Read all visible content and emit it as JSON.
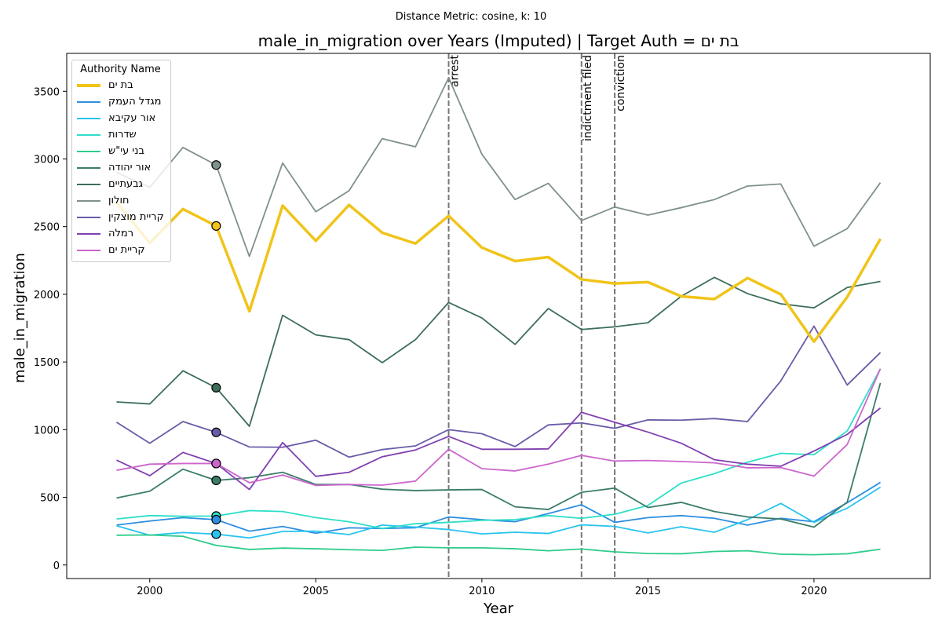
{
  "suptitle": "Distance Metric: cosine, k: 10",
  "chart_data": {
    "type": "line",
    "title": "male_in_migration over Years (Imputed) | Target Auth = בת ים",
    "xlabel": "Year",
    "ylabel": "male_in_migration",
    "xlim": [
      1997.5,
      2023.5
    ],
    "ylim": [
      -100,
      3780
    ],
    "x_ticks": [
      2000,
      2005,
      2010,
      2015,
      2020
    ],
    "y_ticks": [
      0,
      500,
      1000,
      1500,
      2000,
      2500,
      3000,
      3500
    ],
    "grid": false,
    "legend": {
      "title": "Authority Name",
      "position": "top-left"
    },
    "x": [
      1999,
      2000,
      2001,
      2002,
      2003,
      2004,
      2005,
      2006,
      2007,
      2008,
      2009,
      2010,
      2011,
      2012,
      2013,
      2014,
      2015,
      2016,
      2017,
      2018,
      2019,
      2020,
      2021,
      2022
    ],
    "series": [
      {
        "name": "בת ים",
        "color": "#f0c419",
        "width": 3.5,
        "values": [
          2680,
          2380,
          2630,
          2505,
          1875,
          2655,
          2395,
          2660,
          2455,
          2375,
          2580,
          2345,
          2245,
          2275,
          2110,
          2080,
          2090,
          1985,
          1965,
          2120,
          2000,
          1650,
          1980,
          2410
        ]
      },
      {
        "name": "מגדל העמק",
        "color": "#2e8fe0",
        "width": 1.8,
        "values": [
          295,
          325,
          350,
          335,
          250,
          285,
          235,
          275,
          270,
          275,
          355,
          335,
          320,
          380,
          445,
          315,
          350,
          365,
          345,
          295,
          345,
          320,
          460,
          610
        ]
      },
      {
        "name": "אור עקיבא",
        "color": "#29c4f0",
        "width": 1.8,
        "values": [
          290,
          220,
          240,
          228,
          200,
          248,
          250,
          225,
          295,
          280,
          262,
          230,
          242,
          233,
          297,
          285,
          237,
          283,
          242,
          335,
          455,
          315,
          420,
          575
        ]
      },
      {
        "name": "שדרות",
        "color": "#2edfc8",
        "width": 1.8,
        "values": [
          340,
          365,
          360,
          362,
          402,
          395,
          350,
          320,
          270,
          305,
          315,
          330,
          335,
          365,
          345,
          375,
          440,
          605,
          675,
          760,
          825,
          815,
          990,
          1450
        ]
      },
      {
        "name": "בני עי\"ש",
        "color": "#2ecc8a",
        "width": 1.8,
        "values": [
          220,
          222,
          212,
          145,
          115,
          125,
          120,
          113,
          108,
          132,
          127,
          127,
          120,
          105,
          118,
          97,
          85,
          83,
          100,
          105,
          80,
          76,
          83,
          117
        ]
      },
      {
        "name": "אור יהודה",
        "color": "#3b7d6a",
        "width": 1.8,
        "values": [
          495,
          545,
          708,
          625,
          645,
          685,
          595,
          595,
          560,
          550,
          555,
          558,
          430,
          410,
          537,
          568,
          425,
          463,
          395,
          355,
          340,
          280,
          465,
          1345
        ]
      },
      {
        "name": "גבעתיים",
        "color": "#3d6e5a",
        "width": 1.8,
        "values": [
          1205,
          1190,
          1435,
          1310,
          1025,
          1845,
          1700,
          1665,
          1495,
          1665,
          1940,
          1825,
          1630,
          1895,
          1740,
          1760,
          1790,
          1985,
          2125,
          2005,
          1930,
          1900,
          2050,
          2095
        ]
      },
      {
        "name": "חולון",
        "color": "#7f918a",
        "width": 1.8,
        "values": [
          2900,
          2790,
          3085,
          2955,
          2280,
          2970,
          2610,
          2765,
          3150,
          3090,
          3600,
          3035,
          2700,
          2820,
          2545,
          2645,
          2585,
          2640,
          2700,
          2800,
          2815,
          2355,
          2485,
          2825
        ]
      },
      {
        "name": "קריית מוצקין",
        "color": "#6a5ba8",
        "width": 1.8,
        "values": [
          1055,
          900,
          1060,
          980,
          872,
          870,
          922,
          797,
          853,
          880,
          1000,
          970,
          875,
          1035,
          1050,
          1010,
          1072,
          1070,
          1082,
          1060,
          1360,
          1765,
          1330,
          1570
        ]
      },
      {
        "name": "רמלה",
        "color": "#8040b0",
        "width": 1.8,
        "values": [
          775,
          660,
          832,
          750,
          558,
          905,
          655,
          685,
          800,
          850,
          950,
          855,
          855,
          858,
          1128,
          1055,
          982,
          900,
          778,
          745,
          730,
          842,
          965,
          1160
        ]
      },
      {
        "name": "קריית ים",
        "color": "#cc66cc",
        "width": 1.8,
        "values": [
          700,
          745,
          750,
          750,
          608,
          665,
          588,
          595,
          590,
          620,
          855,
          712,
          695,
          745,
          810,
          768,
          772,
          765,
          755,
          718,
          720,
          657,
          890,
          1450
        ]
      }
    ],
    "imputed_points": {
      "x": 2002,
      "markers": [
        {
          "series": "חולון",
          "value": 2955
        },
        {
          "series": "בת ים",
          "value": 2505
        },
        {
          "series": "גבעתיים",
          "value": 1310
        },
        {
          "series": "קריית מוצקין",
          "value": 980
        },
        {
          "series": "רמלה",
          "value": 750
        },
        {
          "series": "קריית ים",
          "value": 750
        },
        {
          "series": "אור יהודה",
          "value": 625
        },
        {
          "series": "שדרות",
          "value": 362
        },
        {
          "series": "מגדל העמק",
          "value": 335
        },
        {
          "series": "אור עקיבא",
          "value": 228
        }
      ]
    },
    "events": [
      {
        "x": 2009,
        "label": "arrest"
      },
      {
        "x": 2013,
        "label": "indictment filed"
      },
      {
        "x": 2014,
        "label": "conviction"
      }
    ]
  }
}
